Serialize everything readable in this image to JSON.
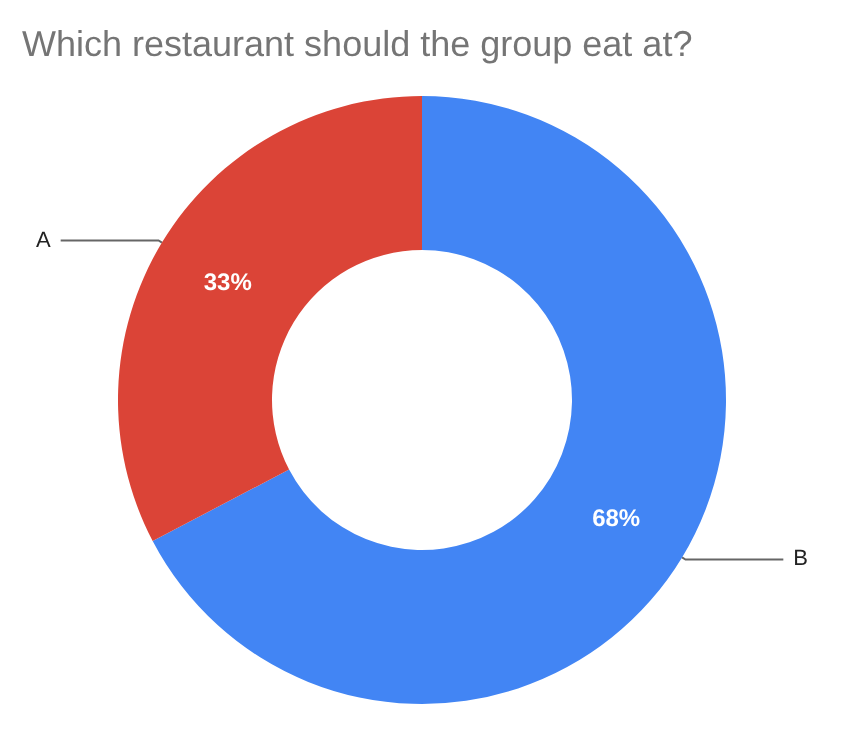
{
  "chart_data": {
    "type": "donut",
    "title": "Which restaurant should the group eat at?",
    "categories": [
      "B",
      "A"
    ],
    "values": [
      68,
      33
    ],
    "value_labels": [
      "68%",
      "33%"
    ],
    "colors": [
      "#4285f4",
      "#db4437"
    ],
    "legend": false
  }
}
